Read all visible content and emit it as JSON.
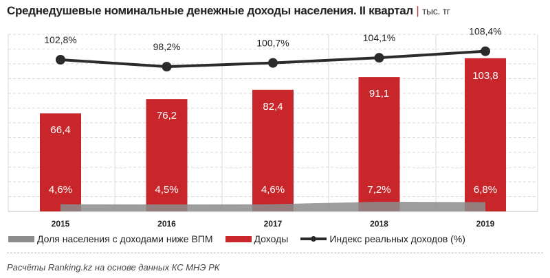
{
  "title": "Среднедушевые номинальные денежные доходы населения. II квартал",
  "unit": "тыс. тг",
  "chart_data": {
    "type": "bar",
    "title": "Среднедушевые номинальные денежные доходы населения. II квартал",
    "unit": "тыс. тг",
    "categories": [
      "2015",
      "2016",
      "2017",
      "2018",
      "2019"
    ],
    "series": [
      {
        "name": "Доходы",
        "type": "bar",
        "values": [
          66.4,
          76.2,
          82.4,
          91.1,
          103.8
        ],
        "labels": [
          "66,4",
          "76,2",
          "82,4",
          "91,1",
          "103,8"
        ],
        "color": "#c8262b"
      },
      {
        "name": "Доля населения с доходами ниже ВПМ",
        "type": "area",
        "values": [
          4.6,
          4.5,
          4.6,
          7.2,
          6.8
        ],
        "labels": [
          "4,6%",
          "4,5%",
          "4,6%",
          "7,2%",
          "6,8%"
        ],
        "color": "#8c8c8c"
      },
      {
        "name": "Индекс реальных доходов (%)",
        "type": "line",
        "values": [
          102.8,
          98.2,
          100.7,
          104.1,
          108.4
        ],
        "labels": [
          "102,8%",
          "98,2%",
          "100,7%",
          "104,1%",
          "108,4%"
        ],
        "color": "#2b2b2b"
      }
    ],
    "grid": true,
    "legend": "bottom"
  },
  "legend": [
    "Доля населения с доходами ниже ВПМ",
    "Доходы",
    "Индекс реальных доходов (%)"
  ],
  "source": "Расчёты Ranking.kz на основе данных  КС МНЭ РК"
}
